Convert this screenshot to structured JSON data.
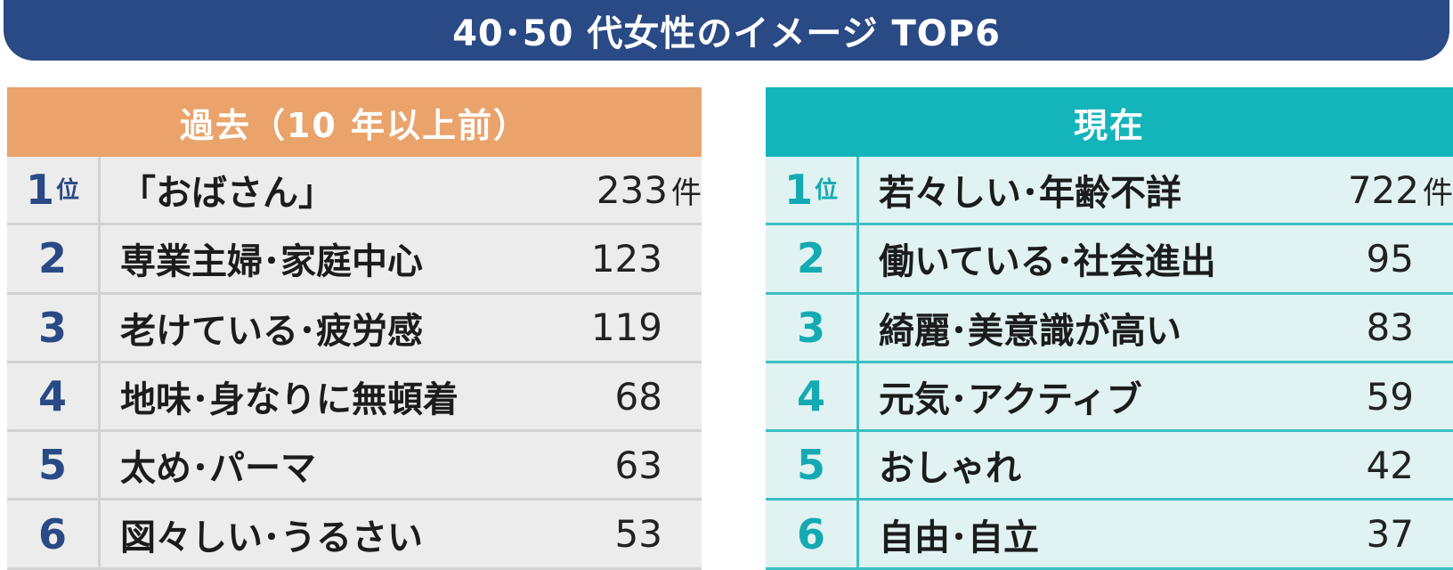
{
  "title": "40･50 代女性のイメージ TOP6",
  "colors": {
    "banner": "#2a4a86",
    "past_header": "#e9a36b",
    "now_header": "#14b4bb",
    "past_rank": "#2a4a86",
    "now_rank": "#14aab2"
  },
  "chart_data": {
    "type": "table",
    "title": "40･50 代女性のイメージ TOP6",
    "unit": "件",
    "rank_suffix": "位",
    "tables": [
      {
        "header": "過去（10 年以上前）",
        "rows": [
          {
            "rank": "1",
            "label": "「おばさん」",
            "value": 233
          },
          {
            "rank": "2",
            "label": "専業主婦･家庭中心",
            "value": 123
          },
          {
            "rank": "3",
            "label": "老けている･疲労感",
            "value": 119
          },
          {
            "rank": "4",
            "label": "地味･身なりに無頓着",
            "value": 68
          },
          {
            "rank": "5",
            "label": "太め･パーマ",
            "value": 63
          },
          {
            "rank": "6",
            "label": "図々しい･うるさい",
            "value": 53
          }
        ]
      },
      {
        "header": "現在",
        "rows": [
          {
            "rank": "1",
            "label": "若々しい･年齢不詳",
            "value": 722
          },
          {
            "rank": "2",
            "label": "働いている･社会進出",
            "value": 95
          },
          {
            "rank": "3",
            "label": "綺麗･美意識が高い",
            "value": 83
          },
          {
            "rank": "4",
            "label": "元気･アクティブ",
            "value": 59
          },
          {
            "rank": "5",
            "label": "おしゃれ",
            "value": 42
          },
          {
            "rank": "6",
            "label": "自由･自立",
            "value": 37
          }
        ]
      }
    ]
  }
}
